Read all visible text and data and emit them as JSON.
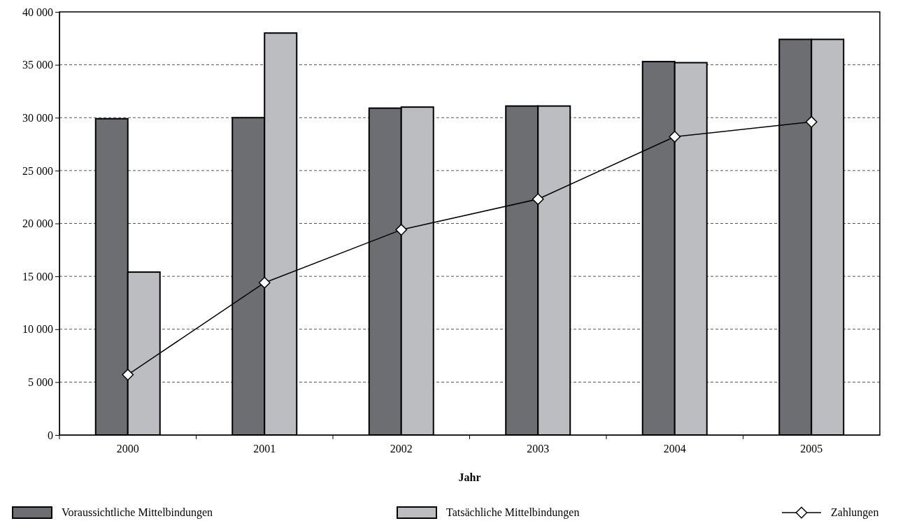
{
  "chart_data": {
    "type": "bar",
    "xlabel": "Jahr",
    "categories": [
      "2000",
      "2001",
      "2002",
      "2003",
      "2004",
      "2005"
    ],
    "series": [
      {
        "name": "Voraussichtliche Mittelbindungen",
        "color": "#6d6e71",
        "values": [
          29900,
          30000,
          30900,
          31100,
          35300,
          37400
        ]
      },
      {
        "name": "Tatsächliche Mittelbindungen",
        "color": "#bcbdc0",
        "values": [
          15400,
          38000,
          31000,
          31100,
          35200,
          37400
        ]
      },
      {
        "name": "Zahlungen",
        "type": "line",
        "color": "#000000",
        "marker": "diamond",
        "values": [
          5700,
          14400,
          19400,
          22300,
          28200,
          29600
        ]
      }
    ],
    "ylim": [
      0,
      40000
    ],
    "yticks": [
      0,
      {
        "value": 5000,
        "label": "5 000"
      },
      {
        "value": 10000,
        "label": "10 000"
      },
      {
        "value": 15000,
        "label": "15 000"
      },
      {
        "value": 20000,
        "label": "20 000"
      },
      {
        "value": 25000,
        "label": "25 000"
      },
      {
        "value": 30000,
        "label": "30 000"
      },
      {
        "value": 35000,
        "label": "35 000"
      },
      {
        "value": 40000,
        "label": "40 000"
      }
    ],
    "grid": "y",
    "legend": "bottom"
  }
}
